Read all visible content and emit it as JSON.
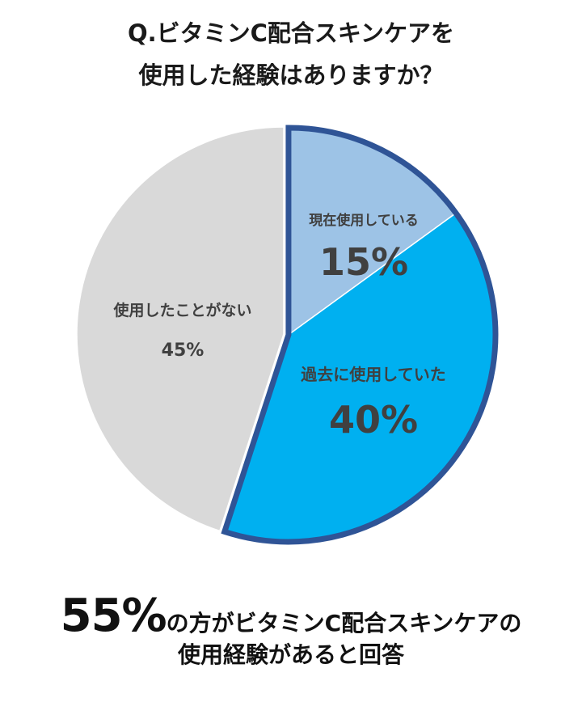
{
  "title_lines": [
    "Q.ビタミンC配合スキンケアを",
    "使用した経験はありますか？"
  ],
  "chart_data": {
    "type": "pie",
    "title": "Q.ビタミンC配合スキンケアを使用した経験はありますか？",
    "slices": [
      {
        "label": "現在使用している",
        "value": 15,
        "value_label": "15%",
        "color": "#9dc3e6",
        "highlighted": true
      },
      {
        "label": "過去に使用していた",
        "value": 40,
        "value_label": "40%",
        "color": "#00b0f0",
        "highlighted": true
      },
      {
        "label": "使用したことがない",
        "value": 45,
        "value_label": "45%",
        "color": "#d9d9d9",
        "highlighted": false
      }
    ],
    "highlight_color": "#2f5496"
  },
  "footer": {
    "big": "55%",
    "line1_rest": "の方がビタミンC配合スキンケアの",
    "line2": "使用経験があると回答"
  }
}
